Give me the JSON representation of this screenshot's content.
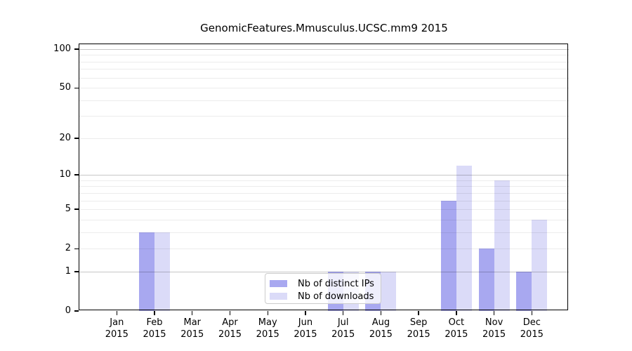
{
  "chart_data": {
    "type": "bar",
    "title": "GenomicFeatures.Mmusculus.UCSC.mm9 2015",
    "categories": [
      "Jan",
      "Feb",
      "Mar",
      "Apr",
      "May",
      "Jun",
      "Jul",
      "Aug",
      "Sep",
      "Oct",
      "Nov",
      "Dec"
    ],
    "category_year": "2015",
    "series": [
      {
        "name": "Nb of distinct IPs",
        "color": "#a8a8f0",
        "values": [
          0,
          3,
          0,
          0,
          0,
          0,
          1,
          1,
          0,
          6,
          2,
          1
        ]
      },
      {
        "name": "Nb of downloads",
        "color": "#dbdbf8",
        "values": [
          0,
          3,
          0,
          0,
          0,
          0,
          1,
          1,
          0,
          12,
          9,
          4
        ]
      }
    ],
    "y_axis": {
      "scale": "log1p",
      "tick_values": [
        0,
        1,
        2,
        5,
        10,
        20,
        50,
        100
      ],
      "range": [
        0,
        110
      ]
    },
    "grid": {
      "major": [
        1,
        10,
        100
      ],
      "minor": [
        2,
        3,
        4,
        5,
        6,
        7,
        8,
        9,
        20,
        30,
        40,
        50,
        60,
        70,
        80,
        90
      ]
    },
    "legend_position": "inside-bottom-center"
  }
}
